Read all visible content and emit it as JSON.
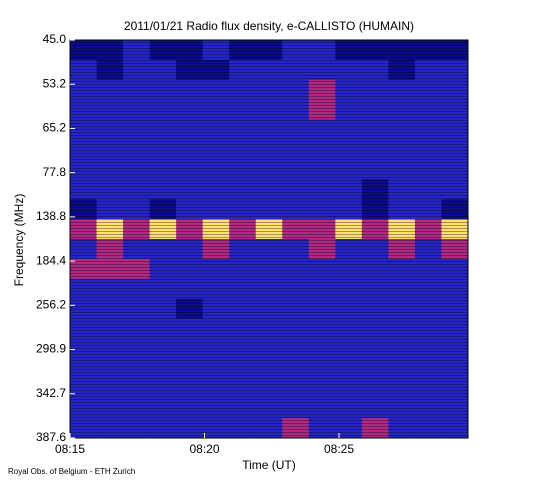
{
  "chart_data": {
    "type": "heatmap",
    "title": "2011/01/21  Radio flux density, e-CALLISTO (HUMAIN)",
    "x_label": "Time (UT)",
    "y_label": "Frequency (MHz)",
    "credit": "Royal Obs. of Belgium - ETH Zurich",
    "xticks": [
      "08:15",
      "08:20",
      "08:25"
    ],
    "yticks": [
      "45.0",
      "53.2",
      "65.2",
      "77.8",
      "138.8",
      "184.4",
      "256.2",
      "298.9",
      "342.7",
      "387.6"
    ],
    "colorscale": [
      "#000040",
      "#0c0c8a",
      "#2626c8",
      "#b02a84",
      "#ffe070"
    ],
    "z": [
      [
        1,
        1,
        2,
        1,
        1,
        2,
        1,
        1,
        2,
        2,
        1,
        1,
        1,
        1,
        1
      ],
      [
        2,
        1,
        2,
        2,
        1,
        1,
        2,
        2,
        2,
        2,
        2,
        2,
        1,
        2,
        2
      ],
      [
        2,
        2,
        2,
        2,
        2,
        2,
        2,
        2,
        2,
        3,
        2,
        2,
        2,
        2,
        2
      ],
      [
        2,
        2,
        2,
        2,
        2,
        2,
        2,
        2,
        2,
        3,
        2,
        2,
        2,
        2,
        2
      ],
      [
        2,
        2,
        2,
        2,
        2,
        2,
        2,
        2,
        2,
        2,
        2,
        2,
        2,
        2,
        2
      ],
      [
        2,
        2,
        2,
        2,
        2,
        2,
        2,
        2,
        2,
        2,
        2,
        2,
        2,
        2,
        2
      ],
      [
        2,
        2,
        2,
        2,
        2,
        2,
        2,
        2,
        2,
        2,
        2,
        2,
        2,
        2,
        2
      ],
      [
        2,
        2,
        2,
        2,
        2,
        2,
        2,
        2,
        2,
        2,
        2,
        1,
        2,
        2,
        2
      ],
      [
        1,
        2,
        2,
        1,
        2,
        2,
        2,
        2,
        2,
        2,
        2,
        1,
        2,
        2,
        1
      ],
      [
        3,
        4,
        3,
        4,
        3,
        4,
        3,
        4,
        3,
        3,
        4,
        3,
        4,
        3,
        4
      ],
      [
        2,
        3,
        2,
        2,
        2,
        3,
        2,
        2,
        2,
        3,
        2,
        2,
        3,
        2,
        3
      ],
      [
        3,
        3,
        3,
        2,
        2,
        2,
        2,
        2,
        2,
        2,
        2,
        2,
        2,
        2,
        2
      ],
      [
        2,
        2,
        2,
        2,
        2,
        2,
        2,
        2,
        2,
        2,
        2,
        2,
        2,
        2,
        2
      ],
      [
        2,
        2,
        2,
        2,
        1,
        2,
        2,
        2,
        2,
        2,
        2,
        2,
        2,
        2,
        2
      ],
      [
        2,
        2,
        2,
        2,
        2,
        2,
        2,
        2,
        2,
        2,
        2,
        2,
        2,
        2,
        2
      ],
      [
        2,
        2,
        2,
        2,
        2,
        2,
        2,
        2,
        2,
        2,
        2,
        2,
        2,
        2,
        2
      ],
      [
        2,
        2,
        2,
        2,
        2,
        2,
        2,
        2,
        2,
        2,
        2,
        2,
        2,
        2,
        2
      ],
      [
        2,
        2,
        2,
        2,
        2,
        2,
        2,
        2,
        2,
        2,
        2,
        2,
        2,
        2,
        2
      ],
      [
        2,
        2,
        2,
        2,
        2,
        2,
        2,
        2,
        2,
        2,
        2,
        2,
        2,
        2,
        2
      ],
      [
        2,
        2,
        2,
        2,
        2,
        2,
        2,
        2,
        3,
        2,
        2,
        3,
        2,
        2,
        2
      ]
    ]
  }
}
